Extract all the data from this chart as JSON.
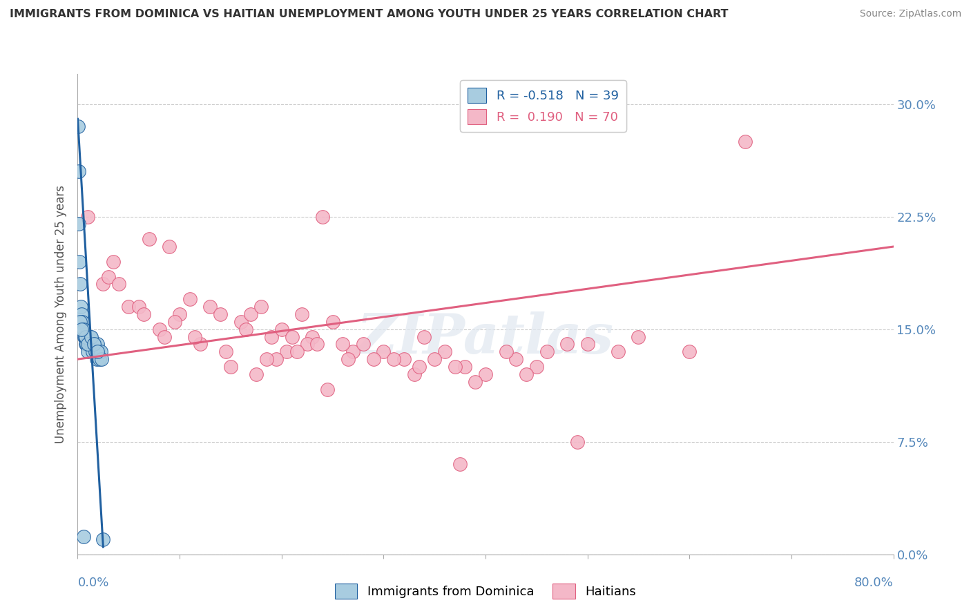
{
  "title": "IMMIGRANTS FROM DOMINICA VS HAITIAN UNEMPLOYMENT AMONG YOUTH UNDER 25 YEARS CORRELATION CHART",
  "source": "Source: ZipAtlas.com",
  "ylabel": "Unemployment Among Youth under 25 years",
  "color_dominica": "#a8cce0",
  "color_haitian": "#f4b8c8",
  "color_line_dominica": "#2060a0",
  "color_line_haitian": "#e06080",
  "color_ticks": "#5588bb",
  "xlim": [
    0.0,
    80.0
  ],
  "ylim": [
    0.0,
    32.0
  ],
  "ytick_values": [
    0.0,
    7.5,
    15.0,
    22.5,
    30.0
  ],
  "ytick_labels": [
    "0.0%",
    "7.5%",
    "15.0%",
    "22.5%",
    "30.0%"
  ],
  "xtick_values": [
    0.0,
    80.0
  ],
  "xtick_labels": [
    "0.0%",
    "80.0%"
  ],
  "legend_line1_r": "R = -0.518",
  "legend_line1_n": "N = 39",
  "legend_line2_r": "R =  0.190",
  "legend_line2_n": "N = 70",
  "watermark": "ZIPatlas",
  "dom_line_x": [
    0.0,
    2.5
  ],
  "dom_line_y": [
    29.0,
    0.5
  ],
  "hai_line_x": [
    0.0,
    80.0
  ],
  "hai_line_y": [
    13.0,
    20.5
  ],
  "dominica_x": [
    0.05,
    0.08,
    0.12,
    0.18,
    0.22,
    0.3,
    0.35,
    0.42,
    0.5,
    0.58,
    0.65,
    0.72,
    0.8,
    0.88,
    0.95,
    1.05,
    1.15,
    1.25,
    1.35,
    1.45,
    1.55,
    1.65,
    1.75,
    1.85,
    1.95,
    2.05,
    2.15,
    2.25,
    2.35,
    2.45,
    0.25,
    0.55,
    0.75,
    1.0,
    1.3,
    1.6,
    1.9,
    0.4,
    0.6
  ],
  "dominica_y": [
    28.5,
    25.5,
    22.0,
    19.5,
    18.0,
    16.5,
    16.0,
    15.5,
    15.0,
    15.0,
    14.5,
    14.5,
    14.0,
    14.0,
    13.5,
    14.5,
    14.0,
    14.5,
    14.0,
    13.5,
    14.0,
    14.0,
    13.5,
    13.0,
    14.0,
    13.5,
    13.0,
    13.5,
    13.0,
    1.0,
    15.5,
    15.0,
    14.5,
    14.0,
    14.5,
    14.0,
    13.5,
    15.0,
    1.2
  ],
  "haitian_x": [
    1.0,
    2.5,
    3.5,
    5.0,
    7.0,
    8.0,
    9.0,
    11.0,
    13.0,
    14.0,
    16.0,
    17.0,
    18.0,
    19.0,
    20.0,
    21.0,
    22.0,
    24.0,
    25.0,
    27.0,
    28.0,
    30.0,
    32.0,
    34.0,
    36.0,
    38.0,
    40.0,
    43.0,
    46.0,
    50.0,
    55.0,
    60.0,
    65.5,
    3.0,
    6.0,
    10.0,
    12.0,
    15.0,
    23.0,
    26.0,
    29.0,
    33.0,
    37.0,
    42.0,
    48.0,
    53.0,
    4.0,
    35.0,
    45.0,
    8.5,
    16.5,
    20.5,
    22.5,
    31.0,
    44.0,
    49.0,
    19.5,
    21.5,
    14.5,
    9.5,
    17.5,
    26.5,
    23.5,
    39.0,
    11.5,
    18.5,
    6.5,
    24.5,
    33.5,
    37.5
  ],
  "haitian_y": [
    22.5,
    18.0,
    19.5,
    16.5,
    21.0,
    15.0,
    20.5,
    17.0,
    16.5,
    16.0,
    15.5,
    16.0,
    16.5,
    14.5,
    15.0,
    14.5,
    16.0,
    22.5,
    15.5,
    13.5,
    14.0,
    13.5,
    13.0,
    14.5,
    13.5,
    12.5,
    12.0,
    13.0,
    13.5,
    14.0,
    14.5,
    13.5,
    27.5,
    18.5,
    16.5,
    16.0,
    14.0,
    12.5,
    14.5,
    14.0,
    13.0,
    12.0,
    12.5,
    13.5,
    14.0,
    13.5,
    18.0,
    13.0,
    12.5,
    14.5,
    15.0,
    13.5,
    14.0,
    13.0,
    12.0,
    7.5,
    13.0,
    13.5,
    13.5,
    15.5,
    12.0,
    13.0,
    14.0,
    11.5,
    14.5,
    13.0,
    16.0,
    11.0,
    12.5,
    6.0
  ]
}
